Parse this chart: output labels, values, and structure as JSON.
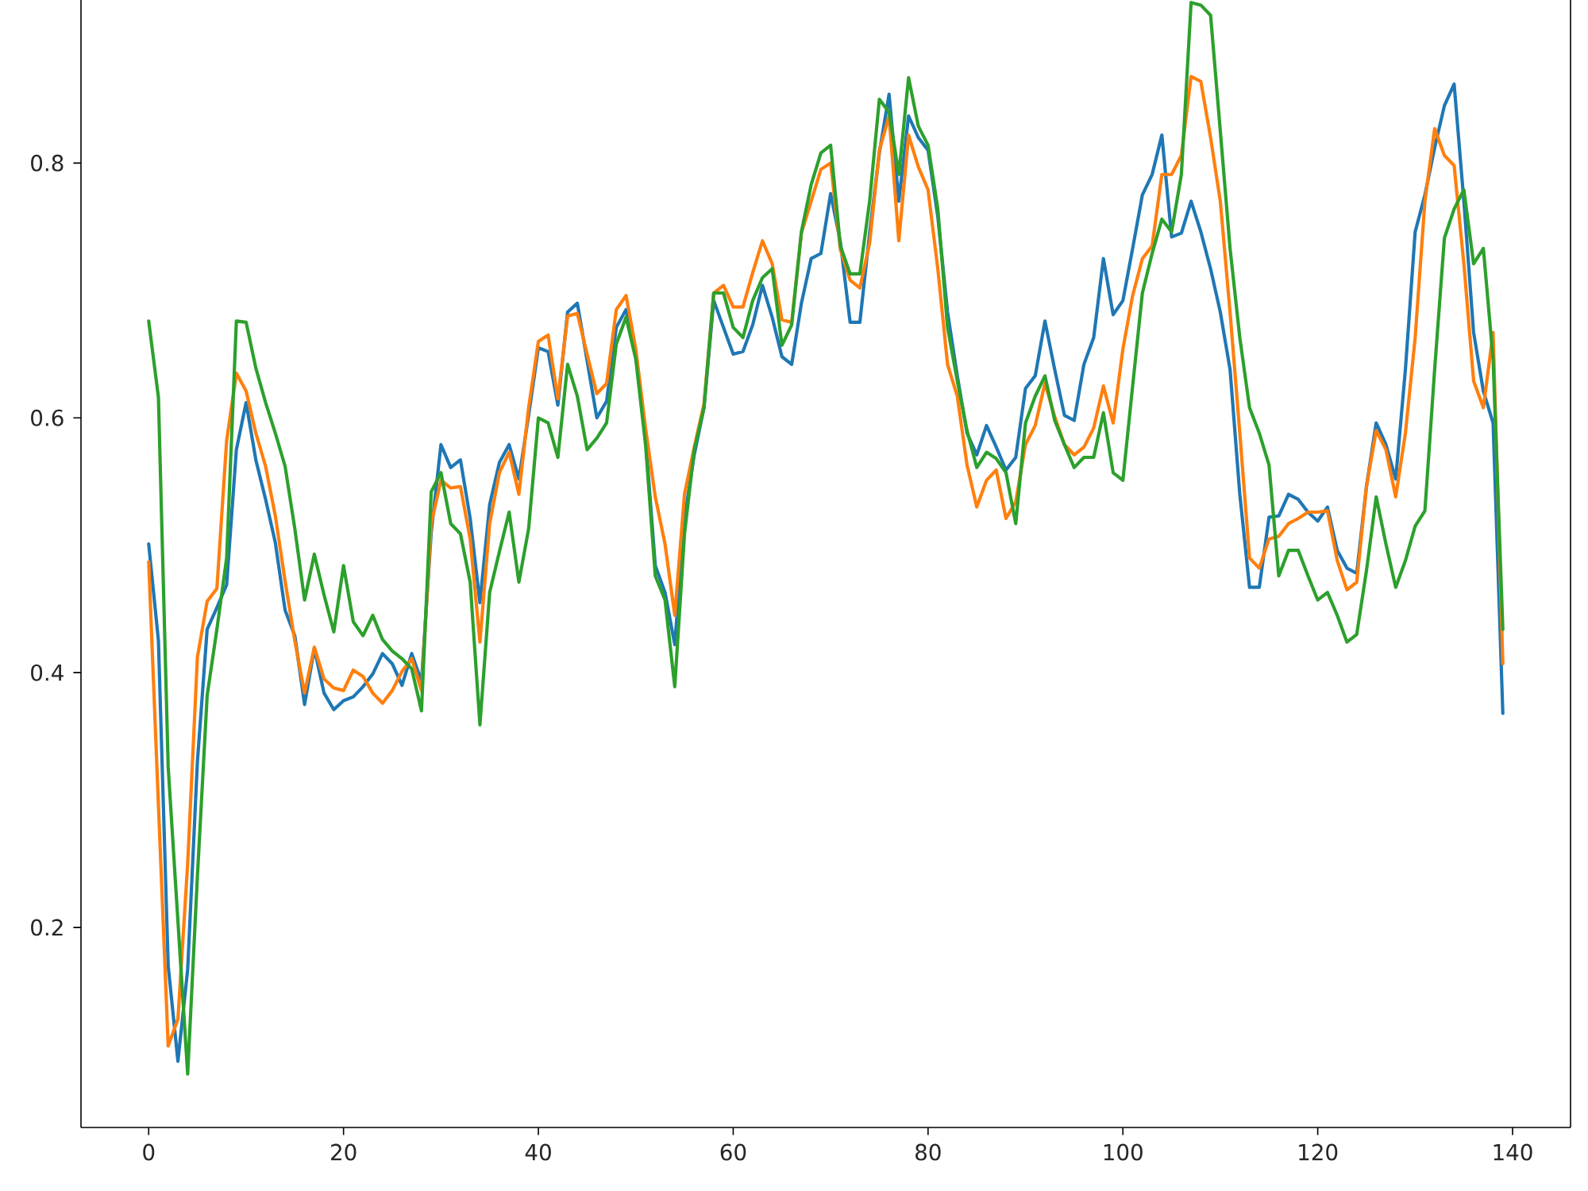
{
  "chart_data": {
    "type": "line",
    "line_style": "solid",
    "x": [
      0,
      1,
      2,
      3,
      4,
      5,
      6,
      7,
      8,
      9,
      10,
      11,
      12,
      13,
      14,
      15,
      16,
      17,
      18,
      19,
      20,
      21,
      22,
      23,
      24,
      25,
      26,
      27,
      28,
      29,
      30,
      31,
      32,
      33,
      34,
      35,
      36,
      37,
      38,
      39,
      40,
      41,
      42,
      43,
      44,
      45,
      46,
      47,
      48,
      49,
      50,
      51,
      52,
      53,
      54,
      55,
      56,
      57,
      58,
      59,
      60,
      61,
      62,
      63,
      64,
      65,
      66,
      67,
      68,
      69,
      70,
      71,
      72,
      73,
      74,
      75,
      76,
      77,
      78,
      79,
      80,
      81,
      82,
      83,
      84,
      85,
      86,
      87,
      88,
      89,
      90,
      91,
      92,
      93,
      94,
      95,
      96,
      97,
      98,
      99,
      100,
      101,
      102,
      103,
      104,
      105,
      106,
      107,
      108,
      109,
      110,
      111,
      112,
      113,
      114,
      115,
      116,
      117,
      118,
      119,
      120,
      121,
      122,
      123,
      124,
      125,
      126,
      127,
      128,
      129,
      130,
      131,
      132,
      133,
      134,
      135,
      136,
      137,
      138,
      139
    ],
    "series": [
      {
        "color": "#1f77b4",
        "values": [
          0.501,
          0.425,
          0.17,
          0.095,
          0.167,
          0.33,
          0.434,
          0.451,
          0.469,
          0.575,
          0.612,
          0.567,
          0.536,
          0.502,
          0.449,
          0.429,
          0.375,
          0.419,
          0.384,
          0.371,
          0.378,
          0.381,
          0.389,
          0.399,
          0.415,
          0.407,
          0.39,
          0.415,
          0.393,
          0.51,
          0.579,
          0.561,
          0.567,
          0.521,
          0.455,
          0.532,
          0.565,
          0.579,
          0.552,
          0.602,
          0.655,
          0.652,
          0.61,
          0.683,
          0.69,
          0.645,
          0.6,
          0.613,
          0.671,
          0.685,
          0.65,
          0.584,
          0.484,
          0.463,
          0.422,
          0.521,
          0.571,
          0.608,
          0.692,
          0.671,
          0.65,
          0.652,
          0.673,
          0.704,
          0.679,
          0.648,
          0.642,
          0.69,
          0.725,
          0.729,
          0.776,
          0.738,
          0.675,
          0.675,
          0.745,
          0.808,
          0.854,
          0.77,
          0.837,
          0.82,
          0.81,
          0.758,
          0.683,
          0.633,
          0.588,
          0.571,
          0.594,
          0.577,
          0.559,
          0.569,
          0.623,
          0.633,
          0.676,
          0.638,
          0.602,
          0.598,
          0.642,
          0.663,
          0.725,
          0.681,
          0.692,
          0.733,
          0.775,
          0.791,
          0.822,
          0.742,
          0.745,
          0.77,
          0.746,
          0.717,
          0.683,
          0.638,
          0.54,
          0.467,
          0.467,
          0.522,
          0.523,
          0.54,
          0.536,
          0.526,
          0.519,
          0.53,
          0.496,
          0.482,
          0.478,
          0.546,
          0.596,
          0.579,
          0.552,
          0.638,
          0.746,
          0.775,
          0.812,
          0.845,
          0.862,
          0.77,
          0.667,
          0.621,
          0.596,
          0.368
        ]
      },
      {
        "color": "#ff7f0e",
        "values": [
          0.487,
          0.296,
          0.107,
          0.128,
          0.25,
          0.412,
          0.456,
          0.466,
          0.582,
          0.635,
          0.621,
          0.588,
          0.562,
          0.523,
          0.472,
          0.425,
          0.384,
          0.42,
          0.395,
          0.388,
          0.386,
          0.402,
          0.397,
          0.384,
          0.376,
          0.386,
          0.401,
          0.411,
          0.386,
          0.517,
          0.551,
          0.545,
          0.546,
          0.505,
          0.424,
          0.517,
          0.557,
          0.573,
          0.54,
          0.608,
          0.66,
          0.665,
          0.615,
          0.68,
          0.682,
          0.65,
          0.619,
          0.627,
          0.685,
          0.696,
          0.654,
          0.592,
          0.538,
          0.501,
          0.445,
          0.54,
          0.577,
          0.611,
          0.698,
          0.704,
          0.687,
          0.687,
          0.714,
          0.739,
          0.721,
          0.677,
          0.675,
          0.745,
          0.77,
          0.795,
          0.8,
          0.732,
          0.708,
          0.702,
          0.737,
          0.81,
          0.837,
          0.739,
          0.822,
          0.797,
          0.779,
          0.717,
          0.642,
          0.617,
          0.563,
          0.53,
          0.551,
          0.559,
          0.521,
          0.534,
          0.579,
          0.594,
          0.627,
          0.601,
          0.579,
          0.571,
          0.577,
          0.592,
          0.625,
          0.596,
          0.654,
          0.696,
          0.725,
          0.735,
          0.791,
          0.791,
          0.806,
          0.868,
          0.864,
          0.82,
          0.77,
          0.683,
          0.588,
          0.49,
          0.482,
          0.505,
          0.507,
          0.517,
          0.521,
          0.526,
          0.526,
          0.527,
          0.488,
          0.465,
          0.471,
          0.546,
          0.59,
          0.575,
          0.538,
          0.588,
          0.663,
          0.77,
          0.827,
          0.806,
          0.798,
          0.721,
          0.629,
          0.608,
          0.667,
          0.407
        ]
      },
      {
        "color": "#2ca02c",
        "values": [
          0.676,
          0.616,
          0.326,
          0.205,
          0.085,
          0.24,
          0.382,
          0.434,
          0.49,
          0.676,
          0.675,
          0.639,
          0.612,
          0.588,
          0.562,
          0.513,
          0.457,
          0.493,
          0.461,
          0.432,
          0.484,
          0.44,
          0.429,
          0.445,
          0.426,
          0.417,
          0.411,
          0.403,
          0.37,
          0.542,
          0.557,
          0.517,
          0.509,
          0.471,
          0.359,
          0.463,
          0.495,
          0.526,
          0.471,
          0.513,
          0.6,
          0.596,
          0.569,
          0.642,
          0.617,
          0.575,
          0.584,
          0.596,
          0.658,
          0.679,
          0.646,
          0.579,
          0.476,
          0.457,
          0.389,
          0.509,
          0.575,
          0.608,
          0.698,
          0.698,
          0.671,
          0.663,
          0.692,
          0.71,
          0.717,
          0.657,
          0.673,
          0.746,
          0.783,
          0.808,
          0.814,
          0.735,
          0.713,
          0.713,
          0.77,
          0.85,
          0.84,
          0.791,
          0.867,
          0.829,
          0.814,
          0.764,
          0.671,
          0.629,
          0.59,
          0.561,
          0.573,
          0.568,
          0.557,
          0.517,
          0.596,
          0.617,
          0.633,
          0.598,
          0.579,
          0.561,
          0.569,
          0.569,
          0.604,
          0.557,
          0.551,
          0.625,
          0.698,
          0.729,
          0.756,
          0.746,
          0.791,
          0.926,
          0.924,
          0.916,
          0.825,
          0.733,
          0.663,
          0.608,
          0.588,
          0.563,
          0.476,
          0.496,
          0.496,
          0.476,
          0.457,
          0.463,
          0.445,
          0.424,
          0.43,
          0.48,
          0.538,
          0.501,
          0.467,
          0.488,
          0.515,
          0.527,
          0.638,
          0.741,
          0.764,
          0.779,
          0.721,
          0.733,
          0.646,
          0.434
        ]
      }
    ],
    "xlim": [
      -6.95,
      145.95
    ],
    "ylim": [
      0.043,
      0.928
    ],
    "xticks": [
      0,
      20,
      40,
      60,
      80,
      100,
      120,
      140
    ],
    "yticks": [
      0.2,
      0.4,
      0.6,
      0.8
    ]
  }
}
